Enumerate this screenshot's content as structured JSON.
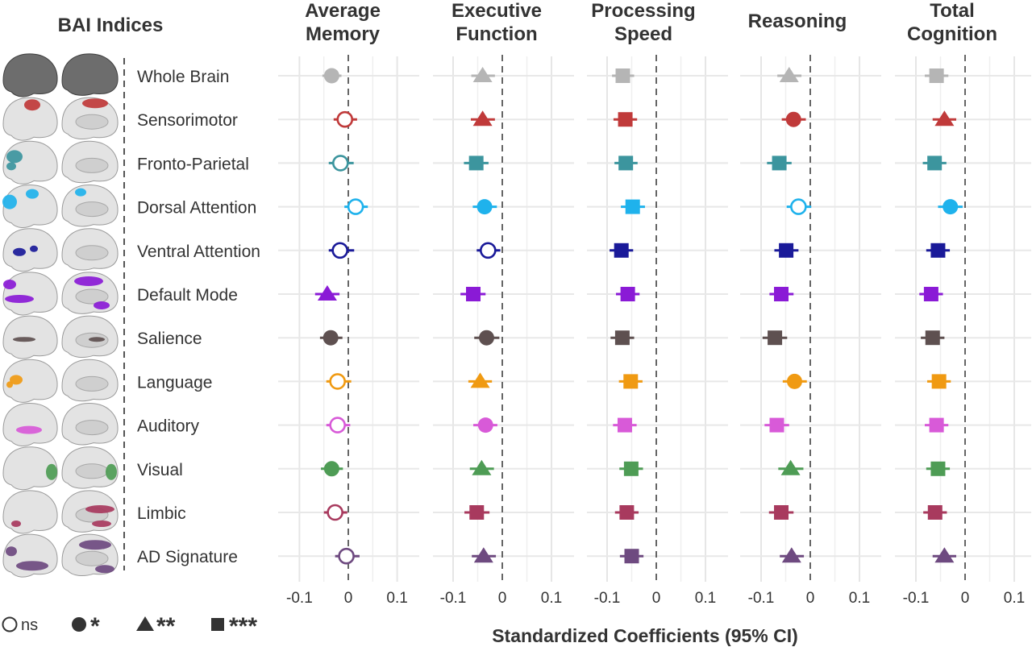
{
  "figure": {
    "left_title": "BAI Indices",
    "x_axis_label": "Standardized Coefficients (95% CI)",
    "legend": [
      {
        "symbol": "open-circle",
        "text": "ns"
      },
      {
        "symbol": "circle",
        "text": "*"
      },
      {
        "symbol": "triangle",
        "text": "**"
      },
      {
        "symbol": "square",
        "text": "***"
      }
    ]
  },
  "colors": {
    "Whole Brain": "#b5b5b5",
    "Sensorimotor": "#c03a3a",
    "Fronto-Parietal": "#3c959e",
    "Dorsal Attention": "#1fb2ec",
    "Ventral Attention": "#1a1a99",
    "Default Mode": "#8a1ad6",
    "Salience": "#5e5050",
    "Language": "#f09a12",
    "Auditory": "#d85ad8",
    "Visual": "#4e9c55",
    "Limbic": "#a83a5e",
    "AD Signature": "#6e4a80"
  },
  "chart_data": [
    {
      "type": "scatter",
      "title": "Average Memory",
      "xlim": [
        -0.13,
        0.13
      ],
      "xticks": [
        "-0.1",
        "0",
        "0.1"
      ],
      "reference_line": 0,
      "grid": true,
      "categories": [
        "Whole Brain",
        "Sensorimotor",
        "Fronto-Parietal",
        "Dorsal Attention",
        "Ventral Attention",
        "Default Mode",
        "Salience",
        "Language",
        "Auditory",
        "Visual",
        "Limbic",
        "AD Signature"
      ],
      "estimates": [
        -0.034,
        -0.007,
        -0.016,
        0.015,
        -0.017,
        -0.043,
        -0.036,
        -0.022,
        -0.022,
        -0.034,
        -0.027,
        -0.004
      ],
      "ci_low": [
        -0.053,
        -0.03,
        -0.04,
        -0.008,
        -0.04,
        -0.068,
        -0.058,
        -0.045,
        -0.045,
        -0.056,
        -0.05,
        -0.027
      ],
      "ci_high": [
        -0.014,
        0.018,
        0.011,
        0.04,
        0.012,
        -0.018,
        -0.012,
        0.006,
        0.004,
        -0.011,
        -0.002,
        0.023
      ],
      "significance": [
        "*",
        "ns",
        "ns",
        "ns",
        "ns",
        "**",
        "*",
        "ns",
        "ns",
        "*",
        "ns",
        "ns"
      ]
    },
    {
      "type": "scatter",
      "title": "Executive Function",
      "xlim": [
        -0.13,
        0.13
      ],
      "xticks": [
        "-0.1",
        "0",
        "0.1"
      ],
      "reference_line": 0,
      "grid": true,
      "categories": [
        "Whole Brain",
        "Sensorimotor",
        "Fronto-Parietal",
        "Dorsal Attention",
        "Ventral Attention",
        "Default Mode",
        "Salience",
        "Language",
        "Auditory",
        "Visual",
        "Limbic",
        "AD Signature"
      ],
      "estimates": [
        -0.04,
        -0.04,
        -0.053,
        -0.036,
        -0.029,
        -0.059,
        -0.032,
        -0.045,
        -0.034,
        -0.042,
        -0.052,
        -0.038
      ],
      "ci_low": [
        -0.063,
        -0.064,
        -0.078,
        -0.06,
        -0.052,
        -0.085,
        -0.057,
        -0.069,
        -0.059,
        -0.066,
        -0.077,
        -0.062
      ],
      "ci_high": [
        -0.015,
        -0.015,
        -0.028,
        -0.011,
        -0.004,
        -0.034,
        -0.006,
        -0.021,
        -0.01,
        -0.017,
        -0.026,
        -0.013
      ],
      "significance": [
        "**",
        "**",
        "***",
        "*",
        "ns",
        "***",
        "*",
        "**",
        "*",
        "**",
        "***",
        "**"
      ]
    },
    {
      "type": "scatter",
      "title": "Processing Speed",
      "xlim": [
        -0.13,
        0.13
      ],
      "xticks": [
        "-0.1",
        "0",
        "0.1"
      ],
      "reference_line": 0,
      "grid": true,
      "categories": [
        "Whole Brain",
        "Sensorimotor",
        "Fronto-Parietal",
        "Dorsal Attention",
        "Ventral Attention",
        "Default Mode",
        "Salience",
        "Language",
        "Auditory",
        "Visual",
        "Limbic",
        "AD Signature"
      ],
      "estimates": [
        -0.068,
        -0.063,
        -0.062,
        -0.048,
        -0.071,
        -0.058,
        -0.069,
        -0.052,
        -0.064,
        -0.051,
        -0.06,
        -0.05
      ],
      "ci_low": [
        -0.09,
        -0.087,
        -0.085,
        -0.072,
        -0.095,
        -0.082,
        -0.093,
        -0.076,
        -0.088,
        -0.075,
        -0.084,
        -0.074
      ],
      "ci_high": [
        -0.045,
        -0.039,
        -0.038,
        -0.023,
        -0.047,
        -0.034,
        -0.045,
        -0.028,
        -0.04,
        -0.027,
        -0.036,
        -0.026
      ],
      "significance": [
        "***",
        "***",
        "***",
        "***",
        "***",
        "***",
        "***",
        "***",
        "***",
        "***",
        "***",
        "***"
      ]
    },
    {
      "type": "scatter",
      "title": "Reasoning",
      "xlim": [
        -0.13,
        0.13
      ],
      "xticks": [
        "-0.1",
        "0",
        "0.1"
      ],
      "reference_line": 0,
      "grid": true,
      "categories": [
        "Whole Brain",
        "Sensorimotor",
        "Fronto-Parietal",
        "Dorsal Attention",
        "Ventral Attention",
        "Default Mode",
        "Salience",
        "Language",
        "Auditory",
        "Visual",
        "Limbic",
        "AD Signature"
      ],
      "estimates": [
        -0.043,
        -0.034,
        -0.063,
        -0.024,
        -0.049,
        -0.059,
        -0.072,
        -0.032,
        -0.068,
        -0.04,
        -0.059,
        -0.038
      ],
      "ci_low": [
        -0.067,
        -0.058,
        -0.088,
        -0.048,
        -0.073,
        -0.083,
        -0.097,
        -0.056,
        -0.093,
        -0.065,
        -0.084,
        -0.062
      ],
      "ci_high": [
        -0.018,
        -0.009,
        -0.038,
        0.002,
        -0.024,
        -0.034,
        -0.047,
        -0.007,
        -0.043,
        -0.014,
        -0.034,
        -0.013
      ],
      "significance": [
        "**",
        "*",
        "***",
        "ns",
        "***",
        "***",
        "***",
        "*",
        "***",
        "**",
        "***",
        "**"
      ]
    },
    {
      "type": "scatter",
      "title": "Total Cognition",
      "xlim": [
        -0.13,
        0.13
      ],
      "xticks": [
        "-0.1",
        "0",
        "0.1"
      ],
      "reference_line": 0,
      "grid": true,
      "categories": [
        "Whole Brain",
        "Sensorimotor",
        "Fronto-Parietal",
        "Dorsal Attention",
        "Ventral Attention",
        "Default Mode",
        "Salience",
        "Language",
        "Auditory",
        "Visual",
        "Limbic",
        "AD Signature"
      ],
      "estimates": [
        -0.058,
        -0.042,
        -0.062,
        -0.03,
        -0.055,
        -0.069,
        -0.066,
        -0.053,
        -0.058,
        -0.055,
        -0.061,
        -0.042
      ],
      "ci_low": [
        -0.082,
        -0.066,
        -0.086,
        -0.055,
        -0.079,
        -0.093,
        -0.09,
        -0.077,
        -0.082,
        -0.079,
        -0.085,
        -0.066
      ],
      "ci_high": [
        -0.034,
        -0.018,
        -0.038,
        -0.005,
        -0.031,
        -0.045,
        -0.042,
        -0.029,
        -0.034,
        -0.031,
        -0.037,
        -0.018
      ],
      "significance": [
        "***",
        "**",
        "***",
        "*",
        "***",
        "***",
        "***",
        "***",
        "***",
        "***",
        "***",
        "**"
      ]
    }
  ]
}
